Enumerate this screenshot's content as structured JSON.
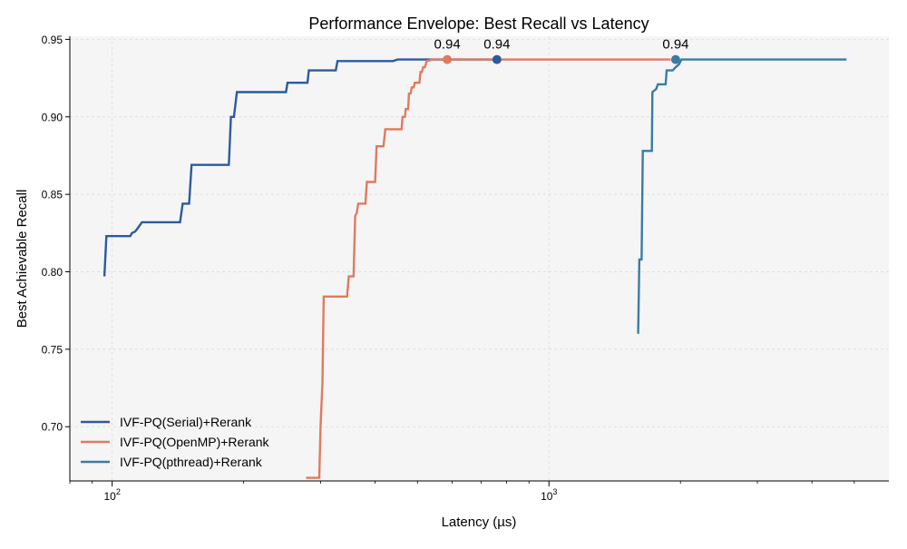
{
  "chart_data": {
    "type": "line",
    "title": "Performance Envelope: Best Recall vs Latency",
    "xlabel": "Latency (µs)",
    "ylabel": "Best Achievable Recall",
    "xscale": "log",
    "xlim": [
      80,
      6000
    ],
    "ylim": [
      0.665,
      0.952
    ],
    "grid": true,
    "legend_position": "lower-left",
    "x_major_ticks": [
      {
        "value": 100,
        "label": "10",
        "exp": "2"
      },
      {
        "value": 1000,
        "label": "10",
        "exp": "3"
      }
    ],
    "x_minor_ticks": [
      80,
      90,
      200,
      300,
      400,
      500,
      600,
      700,
      800,
      900,
      2000,
      3000,
      4000,
      5000
    ],
    "y_ticks": [
      {
        "value": 0.7,
        "label": "0.70"
      },
      {
        "value": 0.75,
        "label": "0.75"
      },
      {
        "value": 0.8,
        "label": "0.80"
      },
      {
        "value": 0.85,
        "label": "0.85"
      },
      {
        "value": 0.9,
        "label": "0.90"
      },
      {
        "value": 0.95,
        "label": "0.95"
      }
    ],
    "series": [
      {
        "name": "IVF-PQ(Serial)+Rerank",
        "color": "#2c5aa0",
        "points": [
          [
            96,
            0.797
          ],
          [
            97,
            0.823
          ],
          [
            110,
            0.823
          ],
          [
            111,
            0.825
          ],
          [
            113,
            0.826
          ],
          [
            115,
            0.829
          ],
          [
            117,
            0.832
          ],
          [
            143,
            0.832
          ],
          [
            145,
            0.844
          ],
          [
            150,
            0.844
          ],
          [
            152,
            0.869
          ],
          [
            185,
            0.869
          ],
          [
            187,
            0.9
          ],
          [
            190,
            0.9
          ],
          [
            193,
            0.916
          ],
          [
            250,
            0.916
          ],
          [
            252,
            0.922
          ],
          [
            280,
            0.922
          ],
          [
            282,
            0.93
          ],
          [
            325,
            0.93
          ],
          [
            328,
            0.936
          ],
          [
            440,
            0.936
          ],
          [
            450,
            0.937
          ],
          [
            760,
            0.937
          ]
        ],
        "marker": {
          "x": 760,
          "y": 0.937,
          "label": "0.94"
        }
      },
      {
        "name": "IVF-PQ(OpenMP)+Rerank",
        "color": "#e07a5f",
        "points": [
          [
            278,
            0.667
          ],
          [
            298,
            0.667
          ],
          [
            300,
            0.7
          ],
          [
            303,
            0.728
          ],
          [
            305,
            0.784
          ],
          [
            345,
            0.784
          ],
          [
            348,
            0.797
          ],
          [
            357,
            0.797
          ],
          [
            360,
            0.836
          ],
          [
            363,
            0.838
          ],
          [
            366,
            0.844
          ],
          [
            380,
            0.844
          ],
          [
            383,
            0.858
          ],
          [
            400,
            0.858
          ],
          [
            403,
            0.881
          ],
          [
            418,
            0.881
          ],
          [
            422,
            0.892
          ],
          [
            460,
            0.892
          ],
          [
            462,
            0.9
          ],
          [
            468,
            0.9
          ],
          [
            470,
            0.905
          ],
          [
            476,
            0.905
          ],
          [
            478,
            0.915
          ],
          [
            482,
            0.915
          ],
          [
            485,
            0.919
          ],
          [
            490,
            0.919
          ],
          [
            493,
            0.922
          ],
          [
            505,
            0.922
          ],
          [
            508,
            0.929
          ],
          [
            512,
            0.929
          ],
          [
            515,
            0.932
          ],
          [
            520,
            0.932
          ],
          [
            525,
            0.936
          ],
          [
            540,
            0.937
          ],
          [
            585,
            0.937
          ],
          [
            760,
            0.937
          ],
          [
            1900,
            0.937
          ]
        ],
        "marker": {
          "x": 585,
          "y": 0.937,
          "label": "0.94"
        }
      },
      {
        "name": "IVF-PQ(pthread)+Rerank",
        "color": "#3a7ca5",
        "points": [
          [
            1600,
            0.76
          ],
          [
            1610,
            0.808
          ],
          [
            1630,
            0.808
          ],
          [
            1640,
            0.878
          ],
          [
            1720,
            0.878
          ],
          [
            1725,
            0.916
          ],
          [
            1760,
            0.918
          ],
          [
            1775,
            0.921
          ],
          [
            1850,
            0.921
          ],
          [
            1860,
            0.93
          ],
          [
            1920,
            0.93
          ],
          [
            1950,
            0.932
          ],
          [
            1985,
            0.934
          ],
          [
            2010,
            0.937
          ],
          [
            4800,
            0.937
          ]
        ],
        "marker": {
          "x": 1950,
          "y": 0.937,
          "label": "0.94"
        }
      }
    ]
  }
}
